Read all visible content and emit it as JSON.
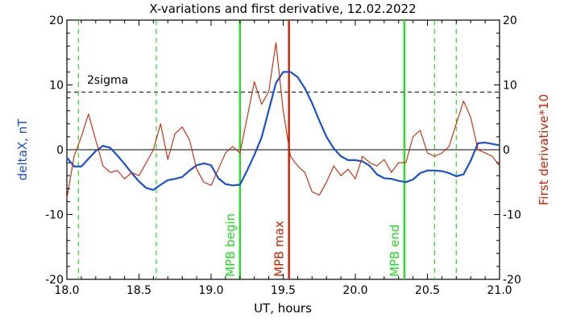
{
  "chart_data": {
    "type": "line",
    "title": "X-variations and first derivative, 12.02.2022",
    "xlabel": "UT, hours",
    "ylabel_left": "deltaX, nT",
    "ylabel_right": "First derivative*10",
    "xlim": [
      18.0,
      21.0
    ],
    "ylim": [
      -20,
      20
    ],
    "x_ticks": [
      "18.0",
      "18.5",
      "19.0",
      "19.5",
      "20.0",
      "20.5",
      "21.0"
    ],
    "y_ticks": [
      "-20",
      "-10",
      "0",
      "10",
      "20"
    ],
    "grid": false,
    "colors": {
      "deltaX": "#1a4fd6",
      "derivative": "#cc2200",
      "mpb_boundary": "#22dd22",
      "mpb_max": "#cc2200",
      "dashed_green": "#22dd22",
      "sigma_line": "#000000"
    },
    "sigma_level": 8.9,
    "sigma_label": "2sigma",
    "zero_line": 0,
    "dashed_green_lines_x": [
      18.08,
      18.62,
      20.55,
      20.7
    ],
    "vertical_markers": [
      {
        "x": 19.2,
        "label": "MPB begin",
        "color": "#22dd22"
      },
      {
        "x": 19.54,
        "label": "MPB max",
        "color": "#cc2200"
      },
      {
        "x": 20.34,
        "label": "MPB end",
        "color": "#22dd22"
      }
    ],
    "series": [
      {
        "name": "deltaX, nT",
        "axis": "left",
        "x": [
          18.0,
          18.05,
          18.1,
          18.15,
          18.2,
          18.25,
          18.3,
          18.35,
          18.4,
          18.45,
          18.5,
          18.55,
          18.6,
          18.65,
          18.7,
          18.75,
          18.8,
          18.85,
          18.9,
          18.95,
          19.0,
          19.05,
          19.1,
          19.15,
          19.2,
          19.25,
          19.3,
          19.35,
          19.4,
          19.45,
          19.5,
          19.55,
          19.6,
          19.65,
          19.7,
          19.75,
          19.8,
          19.85,
          19.9,
          19.95,
          20.0,
          20.05,
          20.1,
          20.15,
          20.2,
          20.25,
          20.3,
          20.35,
          20.4,
          20.45,
          20.5,
          20.55,
          20.6,
          20.65,
          20.7,
          20.75,
          20.8,
          20.85,
          20.9,
          20.95,
          21.0
        ],
        "y": [
          -1.2,
          -2.6,
          -2.6,
          -1.4,
          -0.2,
          0.6,
          0.3,
          -0.9,
          -2.2,
          -3.6,
          -4.9,
          -5.9,
          -6.2,
          -5.4,
          -4.7,
          -4.5,
          -4.2,
          -3.2,
          -2.4,
          -2.1,
          -2.4,
          -4.4,
          -5.3,
          -5.5,
          -5.4,
          -3.2,
          -0.8,
          1.9,
          6.1,
          10.3,
          12.0,
          12.0,
          11.2,
          9.5,
          7.2,
          4.5,
          2.0,
          0.2,
          -1.0,
          -1.6,
          -1.6,
          -1.8,
          -2.5,
          -3.8,
          -4.4,
          -4.5,
          -4.8,
          -5.0,
          -4.6,
          -3.6,
          -3.2,
          -3.2,
          -3.3,
          -3.6,
          -4.1,
          -3.8,
          -1.7,
          1.0,
          1.1,
          0.9,
          0.7
        ]
      },
      {
        "name": "First derivative*10",
        "axis": "right",
        "x": [
          18.0,
          18.05,
          18.1,
          18.15,
          18.2,
          18.25,
          18.3,
          18.35,
          18.4,
          18.45,
          18.5,
          18.55,
          18.6,
          18.65,
          18.7,
          18.75,
          18.8,
          18.85,
          18.9,
          18.95,
          19.0,
          19.05,
          19.1,
          19.15,
          19.2,
          19.25,
          19.3,
          19.35,
          19.4,
          19.45,
          19.5,
          19.55,
          19.6,
          19.65,
          19.7,
          19.75,
          19.8,
          19.85,
          19.9,
          19.95,
          20.0,
          20.05,
          20.1,
          20.15,
          20.2,
          20.25,
          20.3,
          20.35,
          20.4,
          20.45,
          20.5,
          20.55,
          20.6,
          20.65,
          20.7,
          20.75,
          20.8,
          20.85,
          20.9,
          20.95,
          21.0
        ],
        "y": [
          -7.5,
          -1.0,
          2.0,
          5.5,
          1.5,
          -2.5,
          -3.5,
          -3.2,
          -4.5,
          -3.5,
          -4.0,
          -2.0,
          0.0,
          4.0,
          -1.5,
          2.5,
          3.5,
          1.5,
          -3.0,
          -5.0,
          -5.5,
          -3.0,
          -0.5,
          0.5,
          -0.5,
          5.0,
          10.5,
          7.0,
          9.0,
          16.5,
          6.0,
          -1.0,
          -2.5,
          -3.5,
          -6.5,
          -7.0,
          -5.0,
          -2.5,
          -4.0,
          -3.0,
          -4.5,
          -1.0,
          -2.0,
          -2.5,
          -1.5,
          -3.5,
          -2.0,
          -2.0,
          2.0,
          3.0,
          -0.5,
          -1.0,
          -0.5,
          0.5,
          4.0,
          7.5,
          5.0,
          0.0,
          -0.5,
          -1.0,
          -2.5
        ]
      }
    ]
  }
}
